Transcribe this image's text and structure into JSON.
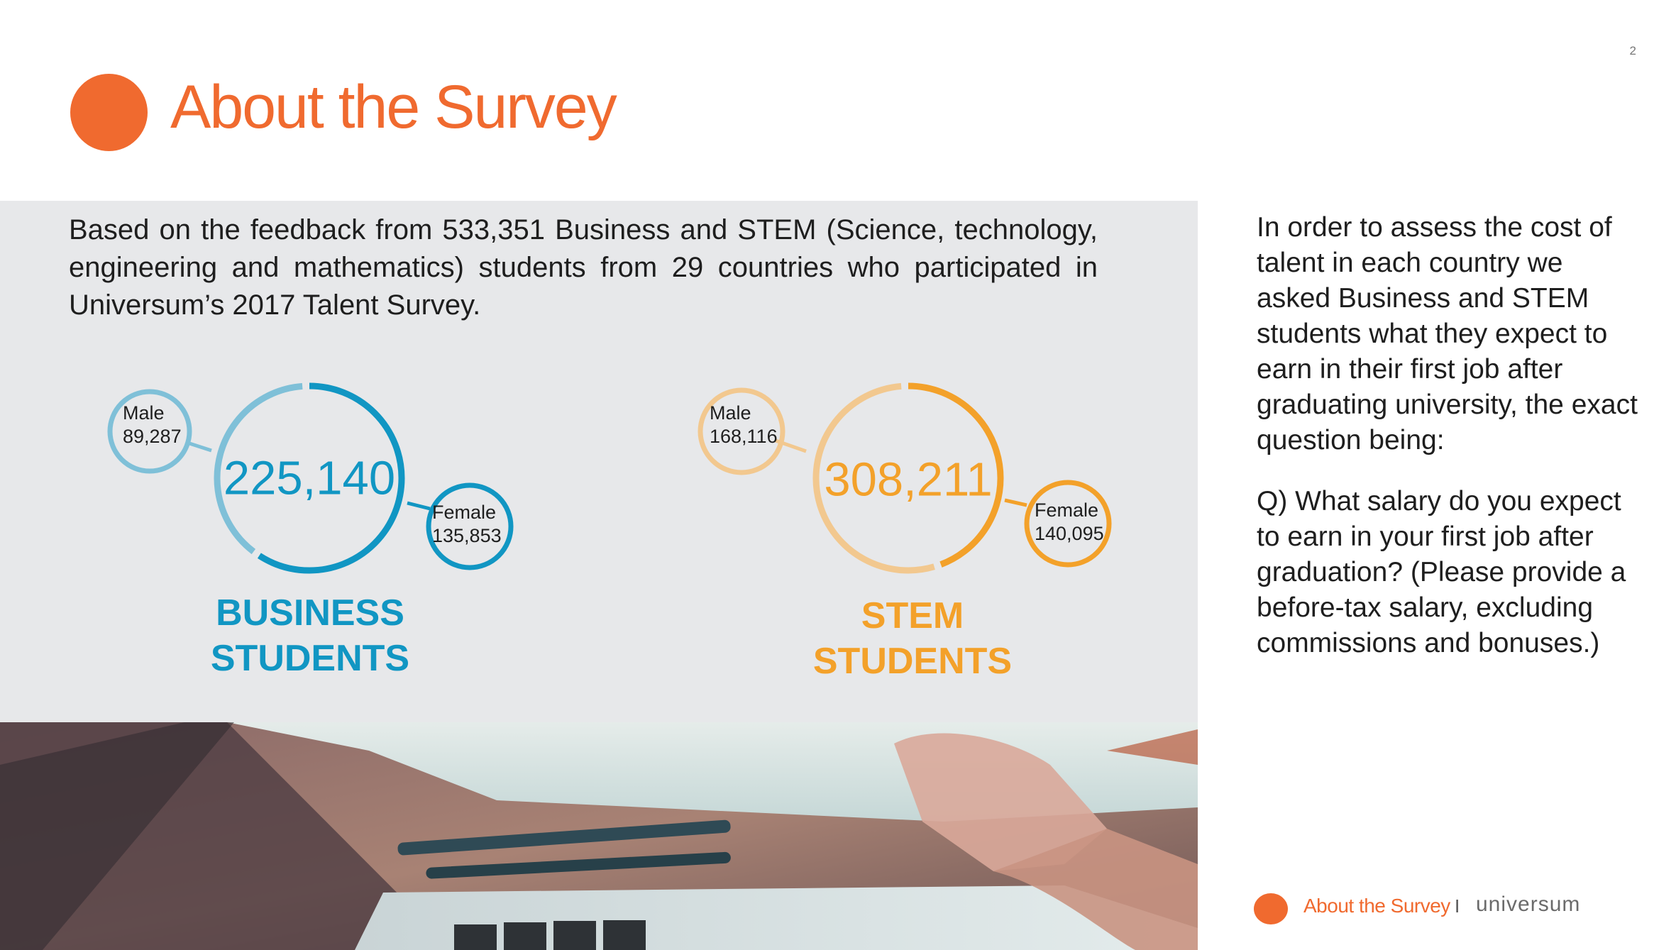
{
  "page": {
    "number": "2",
    "title": "About the Survey"
  },
  "intro": {
    "text": "Based on the feedback from 533,351 Business and STEM (Science, technology, engineering and mathematics) students from 29 countries who participated in Universum’s 2017 Talent Survey."
  },
  "groups": {
    "business": {
      "total": "225,140",
      "male_label": "Male",
      "male_value": "89,287",
      "female_label": "Female",
      "female_value": "135,853",
      "title_line1": "BUSINESS",
      "title_line2": "STUDENTS",
      "male_count": 89287,
      "female_count": 135853,
      "color_dark": "#1196c3",
      "color_light": "#7fc0d8"
    },
    "stem": {
      "total": "308,211",
      "male_label": "Male",
      "male_value": "168,116",
      "female_label": "Female",
      "female_value": "140,095",
      "title_line1": "STEM",
      "title_line2": "STUDENTS",
      "male_count": 168116,
      "female_count": 140095,
      "color_dark": "#f3a12a",
      "color_light": "#f2c88f"
    }
  },
  "sidebar": {
    "paragraph1": "In order to assess the cost of talent in each country we asked Business and STEM students what they expect to earn in their first job after graduating university, the exact question being:",
    "paragraph2": "Q) What salary do you expect to earn in your first job after graduation? (Please provide a before-tax salary, excluding commissions and bonuses.)"
  },
  "footer": {
    "section": "About the Survey",
    "separator": "I",
    "brand": "universum"
  },
  "colors": {
    "accent": "#f06a2f",
    "panel": "#e7e8ea"
  }
}
